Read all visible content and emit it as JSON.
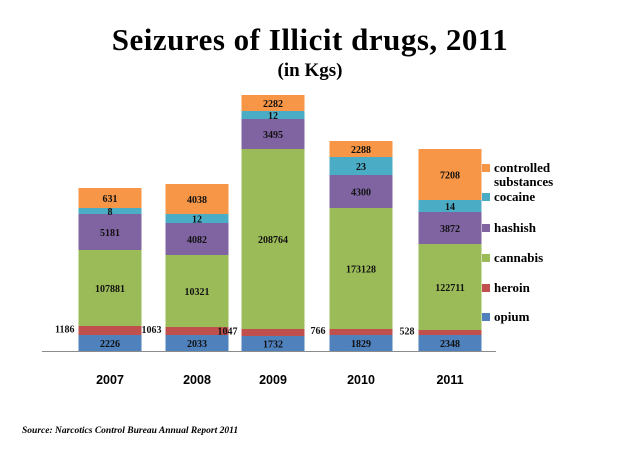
{
  "title": "Seizures  of Illicit drugs, 2011",
  "subtitle": "(in Kgs)",
  "source": "Source: Narcotics Control Bureau Annual Report 2011",
  "chart_data": {
    "type": "bar",
    "stacked": true,
    "title": "Seizures  of Illicit drugs, 2011",
    "subtitle": "(in Kgs)",
    "categories": [
      "2007",
      "2008",
      "2009",
      "2010",
      "2011"
    ],
    "legend_position": "right",
    "grid": false,
    "series": [
      {
        "name": "opium",
        "color": "#4f81bd",
        "values": [
          2226,
          2033,
          1732,
          1829,
          2348
        ]
      },
      {
        "name": "heroin",
        "color": "#c0504d",
        "values": [
          1186,
          1063,
          1047,
          766,
          528
        ]
      },
      {
        "name": "cannabis",
        "color": "#9bbb59",
        "values": [
          107881,
          10321,
          208764,
          173128,
          122711
        ]
      },
      {
        "name": "hashish",
        "color": "#8064a2",
        "values": [
          5181,
          4082,
          3495,
          4300,
          3872
        ]
      },
      {
        "name": "cocaine",
        "color": "#4bacc6",
        "values": [
          8,
          12,
          12,
          23,
          14
        ]
      },
      {
        "name": "controlled substances",
        "color": "#f79646",
        "values": [
          631,
          4038,
          2282,
          2288,
          7208
        ]
      }
    ]
  }
}
